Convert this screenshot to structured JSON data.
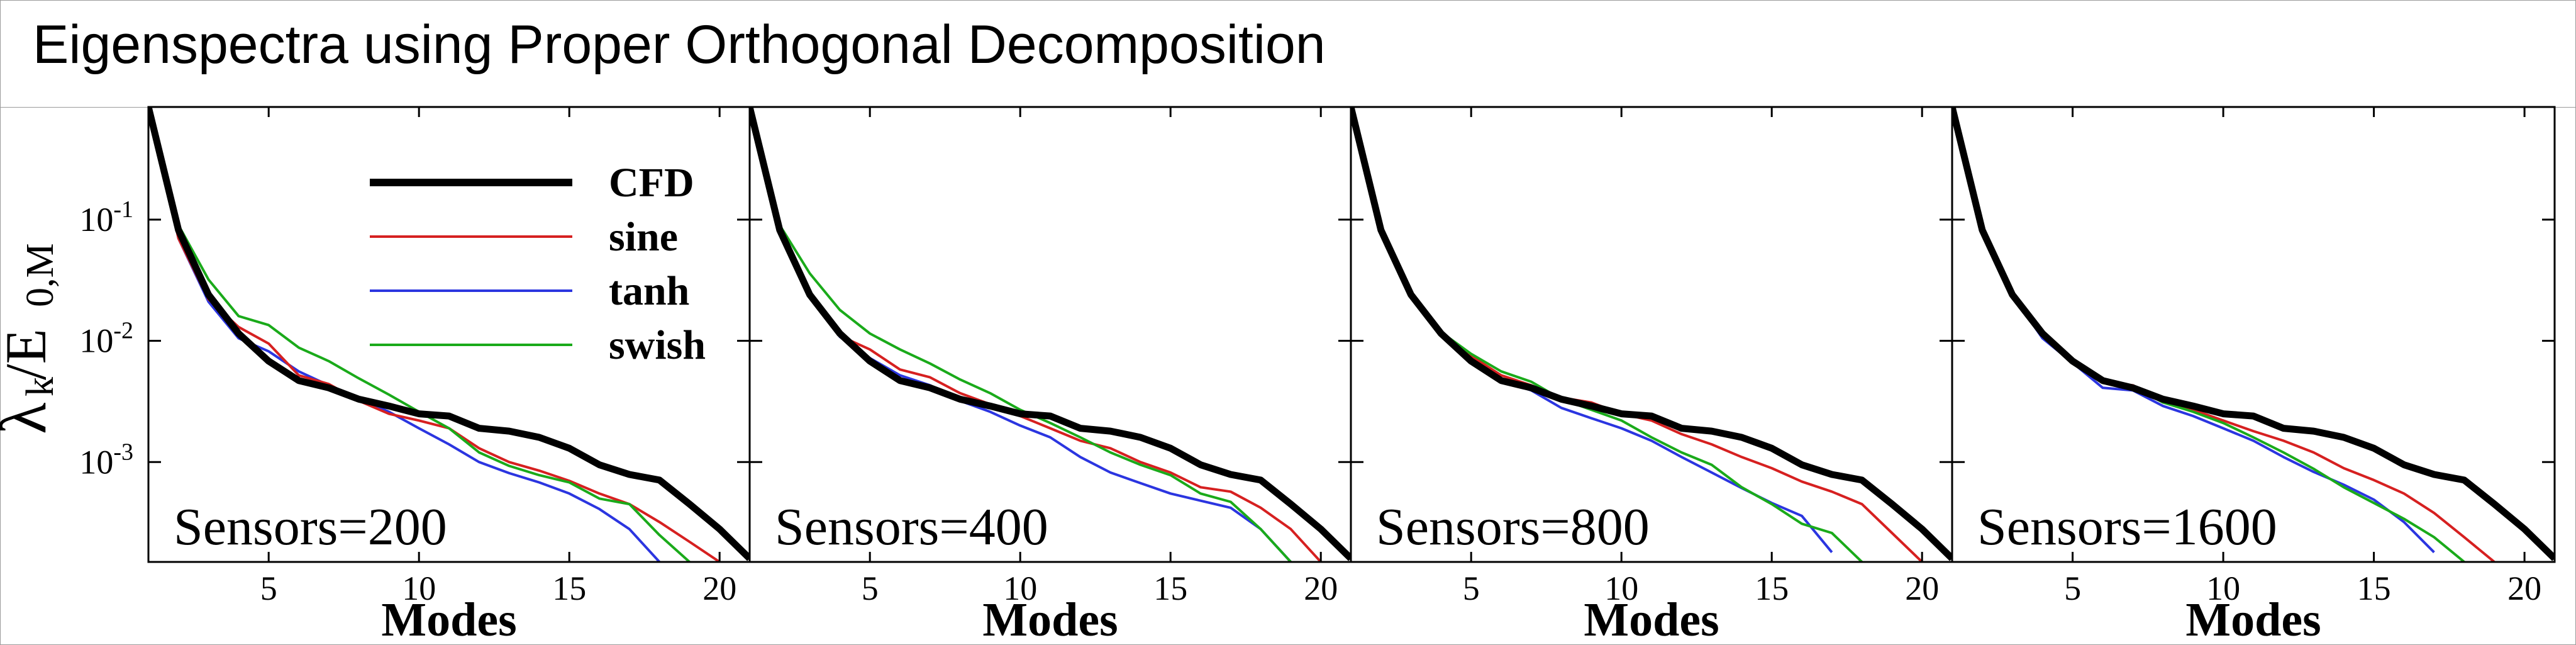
{
  "title": "Eigenspectra using Proper Orthogonal Decomposition",
  "chart_data": {
    "type": "line",
    "y_axis_label": "λk/E0,M",
    "ylabel_main": "λ",
    "ylabel_sub1": "k",
    "ylabel_slash": "/E",
    "ylabel_sub2": "0,M",
    "x_axis_label": "Modes",
    "y_scale": "log",
    "xlim": [
      1,
      21
    ],
    "ylim": [
      0.00015,
      0.85
    ],
    "x_ticks": [
      5,
      10,
      15,
      20
    ],
    "y_ticks": [
      {
        "value": 0.1,
        "base": "10",
        "exp": "-1"
      },
      {
        "value": 0.01,
        "base": "10",
        "exp": "-2"
      },
      {
        "value": 0.001,
        "base": "10",
        "exp": "-3"
      }
    ],
    "legend": {
      "placement": "top-left (first panel)",
      "entries": [
        "CFD",
        "sine",
        "tanh",
        "swish"
      ]
    },
    "series_styles": {
      "CFD": {
        "color": "#000000"
      },
      "sine": {
        "color": "#d62020"
      },
      "tanh": {
        "color": "#2b35e0"
      },
      "swish": {
        "color": "#1aaa1a"
      }
    },
    "panels": [
      {
        "label": "Sensors=200",
        "series": [
          {
            "name": "CFD",
            "x": [
              1,
              2,
              3,
              4,
              5,
              6,
              7,
              8,
              9,
              10,
              11,
              12,
              13,
              14,
              15,
              16,
              17,
              18,
              19,
              20,
              21
            ],
            "y": [
              0.85,
              0.082,
              0.024,
              0.0115,
              0.0068,
              0.0047,
              0.0041,
              0.0033,
              0.0029,
              0.0025,
              0.0024,
              0.0019,
              0.0018,
              0.0016,
              0.0013,
              0.00095,
              0.00079,
              0.00071,
              0.00045,
              0.00028,
              0.00016
            ]
          },
          {
            "name": "sine",
            "x": [
              1,
              2,
              3,
              4,
              5,
              6,
              7,
              8,
              9,
              10,
              11,
              12,
              13,
              14,
              15,
              16,
              17,
              18,
              19,
              20
            ],
            "y": [
              0.85,
              0.07,
              0.022,
              0.013,
              0.0095,
              0.0052,
              0.0044,
              0.0032,
              0.0025,
              0.0022,
              0.0019,
              0.0013,
              0.001,
              0.00085,
              0.0007,
              0.00055,
              0.00045,
              0.00032,
              0.00022,
              0.00015
            ]
          },
          {
            "name": "tanh",
            "x": [
              1,
              2,
              3,
              4,
              5,
              6,
              7,
              8,
              9,
              10,
              11,
              12,
              13,
              14,
              15,
              16,
              17,
              18
            ],
            "y": [
              0.85,
              0.07,
              0.021,
              0.0105,
              0.0082,
              0.0056,
              0.0043,
              0.0033,
              0.0026,
              0.0019,
              0.0014,
              0.001,
              0.00081,
              0.00068,
              0.00055,
              0.00041,
              0.00028,
              0.00015
            ]
          },
          {
            "name": "swish",
            "x": [
              1,
              2,
              3,
              4,
              5,
              6,
              7,
              8,
              9,
              10,
              11,
              12,
              13,
              14,
              15,
              16,
              17,
              18,
              19
            ],
            "y": [
              0.85,
              0.09,
              0.032,
              0.016,
              0.0135,
              0.0088,
              0.0068,
              0.0049,
              0.0036,
              0.0026,
              0.0019,
              0.0012,
              0.00093,
              0.00078,
              0.00068,
              0.0005,
              0.00045,
              0.00025,
              0.00015
            ]
          }
        ]
      },
      {
        "label": "Sensors=400",
        "series": [
          {
            "name": "CFD",
            "x": [
              1,
              2,
              3,
              4,
              5,
              6,
              7,
              8,
              9,
              10,
              11,
              12,
              13,
              14,
              15,
              16,
              17,
              18,
              19,
              20,
              21
            ],
            "y": [
              0.85,
              0.082,
              0.024,
              0.0115,
              0.0068,
              0.0047,
              0.0041,
              0.0033,
              0.0029,
              0.0025,
              0.0024,
              0.0019,
              0.0018,
              0.0016,
              0.0013,
              0.00095,
              0.00079,
              0.00071,
              0.00045,
              0.00028,
              0.00016
            ]
          },
          {
            "name": "sine",
            "x": [
              1,
              2,
              3,
              4,
              5,
              6,
              7,
              8,
              9,
              10,
              11,
              12,
              13,
              14,
              15,
              16,
              17,
              18,
              19,
              20
            ],
            "y": [
              0.85,
              0.085,
              0.025,
              0.011,
              0.0085,
              0.0058,
              0.005,
              0.0037,
              0.003,
              0.0024,
              0.0019,
              0.0015,
              0.0013,
              0.001,
              0.00082,
              0.00062,
              0.00057,
              0.00042,
              0.00028,
              0.00015
            ]
          },
          {
            "name": "tanh",
            "x": [
              1,
              2,
              3,
              4,
              5,
              6,
              7,
              8,
              9,
              10,
              11,
              12,
              13,
              14,
              15,
              16,
              17,
              18,
              19
            ],
            "y": [
              0.85,
              0.082,
              0.023,
              0.0108,
              0.0072,
              0.0052,
              0.0043,
              0.0032,
              0.0026,
              0.002,
              0.0016,
              0.0011,
              0.00082,
              0.00067,
              0.00055,
              0.00048,
              0.00042,
              0.00028,
              0.00015
            ]
          },
          {
            "name": "swish",
            "x": [
              1,
              2,
              3,
              4,
              5,
              6,
              7,
              8,
              9,
              10,
              11,
              12,
              13,
              14,
              15,
              16,
              17,
              18,
              19
            ],
            "y": [
              0.85,
              0.09,
              0.036,
              0.018,
              0.0115,
              0.0085,
              0.0065,
              0.0048,
              0.0037,
              0.0027,
              0.0021,
              0.0016,
              0.0012,
              0.00095,
              0.00078,
              0.00055,
              0.00047,
              0.00028,
              0.00015
            ]
          }
        ]
      },
      {
        "label": "Sensors=800",
        "series": [
          {
            "name": "CFD",
            "x": [
              1,
              2,
              3,
              4,
              5,
              6,
              7,
              8,
              9,
              10,
              11,
              12,
              13,
              14,
              15,
              16,
              17,
              18,
              19,
              20,
              21
            ],
            "y": [
              0.85,
              0.082,
              0.024,
              0.0115,
              0.0068,
              0.0047,
              0.0041,
              0.0033,
              0.0029,
              0.0025,
              0.0024,
              0.0019,
              0.0018,
              0.0016,
              0.0013,
              0.00095,
              0.00079,
              0.00071,
              0.00045,
              0.00028,
              0.00016
            ]
          },
          {
            "name": "sine",
            "x": [
              1,
              2,
              3,
              4,
              5,
              6,
              7,
              8,
              9,
              10,
              11,
              12,
              13,
              14,
              15,
              16,
              17,
              18,
              19,
              20
            ],
            "y": [
              0.85,
              0.082,
              0.024,
              0.0115,
              0.0075,
              0.0052,
              0.0043,
              0.0034,
              0.0031,
              0.0025,
              0.0022,
              0.0017,
              0.0014,
              0.0011,
              0.00089,
              0.00069,
              0.00057,
              0.00045,
              0.00026,
              0.00015
            ]
          },
          {
            "name": "tanh",
            "x": [
              1,
              2,
              3,
              4,
              5,
              6,
              7,
              8,
              9,
              10,
              11,
              12,
              13,
              14,
              15,
              16,
              17
            ],
            "y": [
              0.85,
              0.082,
              0.024,
              0.0115,
              0.0068,
              0.0047,
              0.0039,
              0.0028,
              0.0023,
              0.0019,
              0.0015,
              0.0011,
              0.00082,
              0.00061,
              0.00046,
              0.00036,
              0.00018
            ]
          },
          {
            "name": "swish",
            "x": [
              1,
              2,
              3,
              4,
              5,
              6,
              7,
              8,
              9,
              10,
              11,
              12,
              13,
              14,
              15,
              16,
              17,
              18
            ],
            "y": [
              0.85,
              0.082,
              0.025,
              0.0118,
              0.0078,
              0.0056,
              0.0046,
              0.0033,
              0.0027,
              0.0022,
              0.0016,
              0.0012,
              0.00095,
              0.00062,
              0.00045,
              0.00031,
              0.00026,
              0.00015
            ]
          }
        ]
      },
      {
        "label": "Sensors=1600",
        "series": [
          {
            "name": "CFD",
            "x": [
              1,
              2,
              3,
              4,
              5,
              6,
              7,
              8,
              9,
              10,
              11,
              12,
              13,
              14,
              15,
              16,
              17,
              18,
              19,
              20,
              21
            ],
            "y": [
              0.85,
              0.082,
              0.024,
              0.0115,
              0.0068,
              0.0047,
              0.0041,
              0.0033,
              0.0029,
              0.0025,
              0.0024,
              0.0019,
              0.0018,
              0.0016,
              0.0013,
              0.00095,
              0.00079,
              0.00071,
              0.00045,
              0.00028,
              0.00016
            ]
          },
          {
            "name": "sine",
            "x": [
              1,
              2,
              3,
              4,
              5,
              6,
              7,
              8,
              9,
              10,
              11,
              12,
              13,
              14,
              15,
              16,
              17,
              18,
              19
            ],
            "y": [
              0.85,
              0.082,
              0.024,
              0.0115,
              0.007,
              0.0046,
              0.0043,
              0.0031,
              0.0027,
              0.0022,
              0.0018,
              0.0015,
              0.0012,
              0.00089,
              0.00071,
              0.00055,
              0.00038,
              0.00024,
              0.00015
            ]
          },
          {
            "name": "tanh",
            "x": [
              1,
              2,
              3,
              4,
              5,
              6,
              7,
              8,
              9,
              10,
              11,
              12,
              13,
              14,
              15,
              16,
              17
            ],
            "y": [
              0.85,
              0.082,
              0.024,
              0.0105,
              0.0066,
              0.0041,
              0.0039,
              0.0029,
              0.0024,
              0.0019,
              0.0015,
              0.0011,
              0.00083,
              0.00065,
              0.00049,
              0.00032,
              0.00018
            ]
          },
          {
            "name": "swish",
            "x": [
              1,
              2,
              3,
              4,
              5,
              6,
              7,
              8,
              9,
              10,
              11,
              12,
              13,
              14,
              15,
              16,
              17,
              18
            ],
            "y": [
              0.85,
              0.082,
              0.024,
              0.011,
              0.0068,
              0.0045,
              0.0042,
              0.0031,
              0.0026,
              0.0021,
              0.0016,
              0.0012,
              0.00088,
              0.00062,
              0.00046,
              0.00034,
              0.00024,
              0.00015
            ]
          }
        ]
      }
    ]
  }
}
